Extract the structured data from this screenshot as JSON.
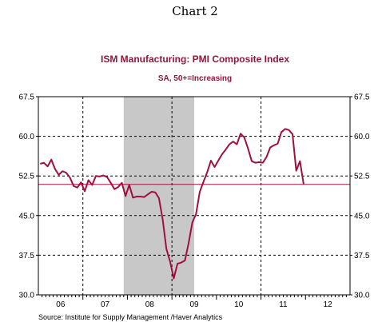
{
  "heading": "Chart 2",
  "source": "Source:  Institute for Supply Management /Haver Analytics",
  "chart_data": {
    "type": "line",
    "title": "ISM Manufacturing: PMI Composite Index",
    "subtitle": "SA, 50+=Increasing",
    "y_ticks": [
      "67.5",
      "60.0",
      "52.5",
      "45.0",
      "37.5",
      "30.0"
    ],
    "y_tick_values": [
      67.5,
      60.0,
      52.5,
      45.0,
      37.5,
      30.0
    ],
    "ylim": [
      30,
      67.5
    ],
    "x_ticks": [
      "06",
      "07",
      "08",
      "09",
      "10",
      "11",
      "12"
    ],
    "x_range_months": 84,
    "grid": true,
    "reference_line": 50.9,
    "recession_shading": {
      "start_month": 23,
      "end_month": 42
    },
    "colors": {
      "series": "#a0103c",
      "reference": "#a0103c",
      "shading": "#c8c8c8"
    },
    "series": [
      {
        "values": [
          54.8,
          55.0,
          54.3,
          55.6,
          53.8,
          52.7,
          53.4,
          53.1,
          52.2,
          50.6,
          50.3,
          51.3,
          49.6,
          51.7,
          50.8,
          52.5,
          52.4,
          52.6,
          52.3,
          51.2,
          50.0,
          50.4,
          51.2,
          48.7,
          50.8,
          48.4,
          48.6,
          48.6,
          48.5,
          49.0,
          49.5,
          49.4,
          48.3,
          44.3,
          38.7,
          36.3,
          33.1,
          35.9,
          36.1,
          36.5,
          39.8,
          43.7,
          45.3,
          49.5,
          51.4,
          53.2,
          55.4,
          54.2,
          55.4,
          56.6,
          57.5,
          58.5,
          59.0,
          58.5,
          60.5,
          59.8,
          57.7,
          55.3,
          55.0,
          55.1,
          55.0,
          56.1,
          57.9,
          58.3,
          58.6,
          60.8,
          61.4,
          61.2,
          60.4,
          53.5,
          55.3,
          50.9
        ]
      }
    ]
  }
}
